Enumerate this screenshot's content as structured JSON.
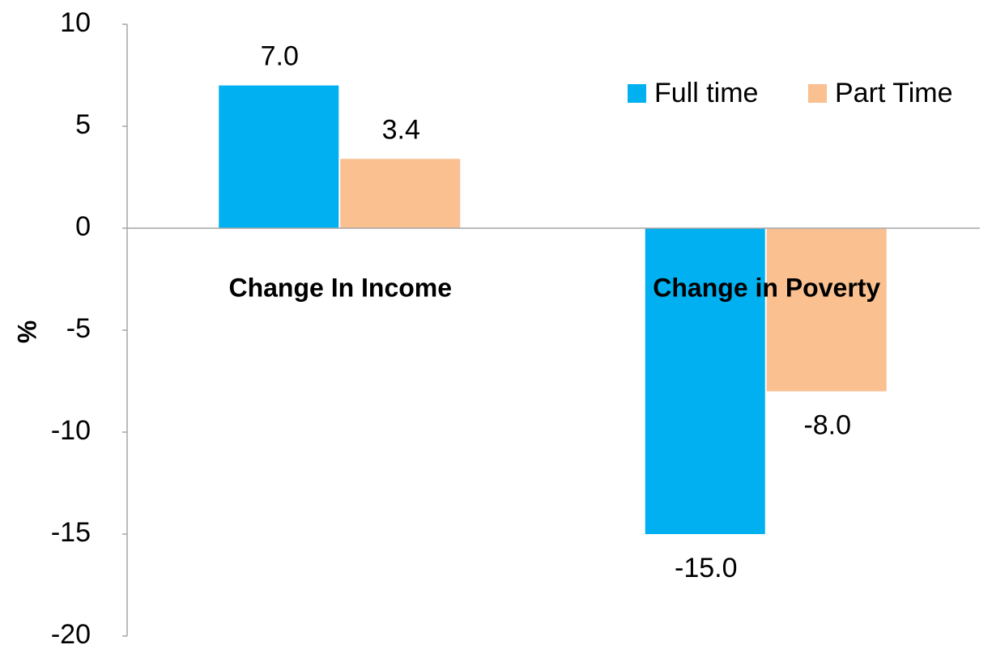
{
  "chart_data": {
    "type": "bar",
    "categories": [
      "Change In Income",
      "Change in Poverty"
    ],
    "series": [
      {
        "name": "Full time",
        "color": "#00b0f0",
        "values": [
          7,
          -15
        ],
        "value_labels": [
          "7.0",
          "-15.0"
        ]
      },
      {
        "name": "Part Time",
        "color": "#fac090",
        "values": [
          3.4,
          -8
        ],
        "value_labels": [
          "3.4",
          "-8.0"
        ]
      }
    ],
    "y_label": "%",
    "ylim": [
      -20,
      10
    ],
    "yticks": [
      -20,
      -15,
      -10,
      -5,
      0,
      5,
      10
    ],
    "legend": "top-right"
  }
}
